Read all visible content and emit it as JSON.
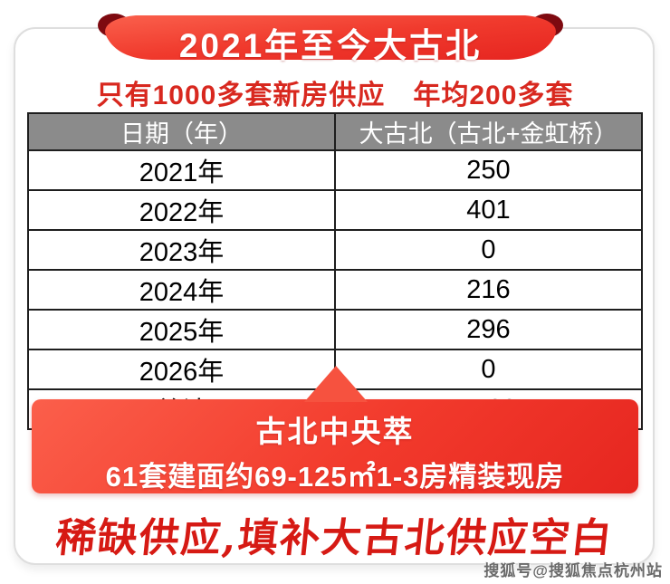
{
  "banner": {
    "title": "2021年至今大古北"
  },
  "subtitle": "只有1000多套新房供应　年均200多套",
  "chart_data": {
    "type": "table",
    "title": "2021年至今大古北新房供应",
    "columns": [
      "日期（年）",
      "大古北（古北+金虹桥）"
    ],
    "rows": [
      [
        "2021年",
        "250"
      ],
      [
        "2022年",
        "401"
      ],
      [
        "2023年",
        "0"
      ],
      [
        "2024年",
        "216"
      ],
      [
        "2025年",
        "296"
      ],
      [
        "2026年",
        "0"
      ],
      [
        "总计",
        "1163"
      ]
    ]
  },
  "callout": {
    "title": "古北中央萃",
    "detail": "61套建面约69-125㎡1-3房精装现房"
  },
  "slogan": "稀缺供应,填补大古北供应空白",
  "watermark": "搜狐号@搜狐焦点杭州站",
  "colors": {
    "ribbon_red_light": "#fb5f4b",
    "ribbon_red_dark": "#e62620",
    "ribbon_fold": "#7e0a10",
    "subtitle_red": "#d8281f",
    "table_header_bg": "#8b8b8b",
    "table_border": "#1e1e1e",
    "slogan_red": "#d61a14"
  }
}
